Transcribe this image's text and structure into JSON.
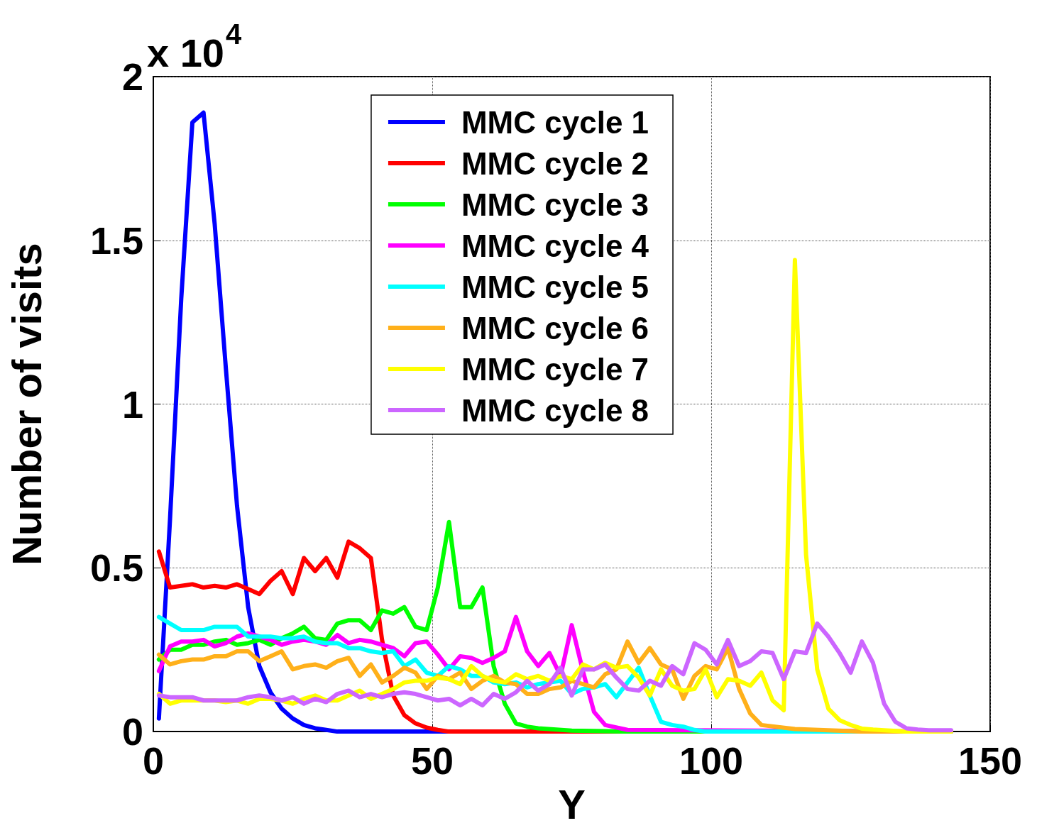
{
  "chart_data": {
    "type": "line",
    "xlabel": "Y",
    "ylabel": "Number of visits",
    "annotations": [
      "x 10$^{4}$"
    ],
    "xlim": [
      0,
      150
    ],
    "xticks": [
      0,
      50,
      100,
      150
    ],
    "ylim": [
      0,
      2
    ],
    "yticks": [
      0,
      0.5,
      1,
      1.5,
      2
    ],
    "grid": true,
    "legend": "top",
    "marker": "none",
    "line_style": "solid",
    "series": [
      {
        "name": "MMC cycle 1",
        "color": "#0000ff",
        "x": [
          1,
          3,
          5,
          7,
          9,
          11,
          13,
          15,
          17,
          19,
          21,
          23,
          25,
          27,
          29,
          31,
          33,
          143
        ],
        "values": [
          0.04,
          0.65,
          1.32,
          1.86,
          1.89,
          1.55,
          1.11,
          0.69,
          0.38,
          0.2,
          0.12,
          0.07,
          0.04,
          0.02,
          0.01,
          0.005,
          0,
          0
        ]
      },
      {
        "name": "MMC cycle 2",
        "color": "#ff0000",
        "x": [
          1,
          3,
          5,
          7,
          9,
          11,
          13,
          15,
          17,
          19,
          21,
          23,
          25,
          27,
          29,
          31,
          33,
          35,
          37,
          39,
          41,
          43,
          45,
          47,
          49,
          51,
          53,
          143
        ],
        "values": [
          0.55,
          0.44,
          0.445,
          0.45,
          0.44,
          0.445,
          0.44,
          0.45,
          0.435,
          0.42,
          0.46,
          0.49,
          0.42,
          0.53,
          0.49,
          0.53,
          0.47,
          0.58,
          0.56,
          0.53,
          0.28,
          0.11,
          0.05,
          0.025,
          0.012,
          0.005,
          0,
          0
        ]
      },
      {
        "name": "MMC cycle 3",
        "color": "#00ff00",
        "x": [
          1,
          3,
          5,
          7,
          9,
          11,
          13,
          15,
          17,
          19,
          21,
          23,
          25,
          27,
          29,
          31,
          33,
          35,
          37,
          39,
          41,
          43,
          45,
          47,
          49,
          51,
          53,
          55,
          57,
          59,
          61,
          63,
          65,
          67,
          69,
          75,
          85,
          143
        ],
        "values": [
          0.22,
          0.25,
          0.25,
          0.265,
          0.265,
          0.275,
          0.28,
          0.265,
          0.27,
          0.28,
          0.265,
          0.285,
          0.3,
          0.32,
          0.285,
          0.28,
          0.33,
          0.34,
          0.34,
          0.31,
          0.37,
          0.36,
          0.38,
          0.32,
          0.31,
          0.44,
          0.64,
          0.38,
          0.38,
          0.44,
          0.2,
          0.085,
          0.025,
          0.015,
          0.01,
          0.003,
          0,
          0
        ]
      },
      {
        "name": "MMC cycle 4",
        "color": "#ff00ff",
        "x": [
          1,
          3,
          5,
          7,
          9,
          11,
          13,
          15,
          17,
          19,
          21,
          23,
          25,
          27,
          29,
          31,
          33,
          35,
          37,
          39,
          41,
          43,
          45,
          47,
          49,
          51,
          53,
          55,
          57,
          59,
          61,
          63,
          65,
          67,
          69,
          71,
          73,
          75,
          77,
          79,
          81,
          85,
          143
        ],
        "values": [
          0.185,
          0.26,
          0.275,
          0.275,
          0.28,
          0.26,
          0.27,
          0.29,
          0.3,
          0.29,
          0.28,
          0.265,
          0.275,
          0.28,
          0.275,
          0.265,
          0.295,
          0.27,
          0.28,
          0.275,
          0.265,
          0.255,
          0.23,
          0.27,
          0.275,
          0.235,
          0.19,
          0.23,
          0.225,
          0.21,
          0.225,
          0.245,
          0.35,
          0.245,
          0.2,
          0.24,
          0.17,
          0.325,
          0.185,
          0.06,
          0.02,
          0.005,
          0
        ]
      },
      {
        "name": "MMC cycle 5",
        "color": "#00ffff",
        "x": [
          1,
          3,
          5,
          7,
          9,
          11,
          13,
          15,
          17,
          19,
          21,
          23,
          25,
          27,
          29,
          31,
          33,
          35,
          37,
          39,
          41,
          43,
          45,
          47,
          49,
          51,
          53,
          55,
          57,
          59,
          61,
          63,
          65,
          67,
          69,
          71,
          73,
          75,
          77,
          79,
          81,
          83,
          85,
          87,
          89,
          91,
          93,
          95,
          97,
          99,
          143
        ],
        "values": [
          0.35,
          0.33,
          0.31,
          0.31,
          0.31,
          0.32,
          0.32,
          0.32,
          0.29,
          0.29,
          0.29,
          0.285,
          0.285,
          0.29,
          0.275,
          0.27,
          0.27,
          0.255,
          0.255,
          0.245,
          0.24,
          0.245,
          0.2,
          0.22,
          0.18,
          0.17,
          0.2,
          0.19,
          0.17,
          0.17,
          0.15,
          0.145,
          0.15,
          0.135,
          0.145,
          0.15,
          0.155,
          0.115,
          0.13,
          0.135,
          0.145,
          0.105,
          0.15,
          0.195,
          0.11,
          0.03,
          0.02,
          0.015,
          0.005,
          0,
          0
        ]
      },
      {
        "name": "MMC cycle 6",
        "color": "#ffb01a",
        "x": [
          1,
          3,
          5,
          7,
          9,
          11,
          13,
          15,
          17,
          19,
          21,
          23,
          25,
          27,
          29,
          31,
          33,
          35,
          37,
          39,
          41,
          43,
          45,
          47,
          49,
          51,
          53,
          55,
          57,
          59,
          61,
          63,
          65,
          67,
          69,
          71,
          73,
          75,
          77,
          79,
          81,
          83,
          85,
          87,
          89,
          91,
          93,
          95,
          97,
          99,
          101,
          103,
          105,
          107,
          109,
          115,
          127,
          143
        ],
        "values": [
          0.235,
          0.205,
          0.215,
          0.22,
          0.22,
          0.23,
          0.23,
          0.245,
          0.245,
          0.215,
          0.23,
          0.245,
          0.19,
          0.2,
          0.205,
          0.195,
          0.215,
          0.225,
          0.17,
          0.205,
          0.15,
          0.17,
          0.195,
          0.18,
          0.13,
          0.17,
          0.16,
          0.18,
          0.13,
          0.155,
          0.17,
          0.15,
          0.145,
          0.115,
          0.115,
          0.13,
          0.135,
          0.155,
          0.145,
          0.135,
          0.175,
          0.19,
          0.275,
          0.21,
          0.255,
          0.205,
          0.19,
          0.1,
          0.17,
          0.2,
          0.19,
          0.255,
          0.13,
          0.055,
          0.02,
          0.008,
          0,
          0
        ]
      },
      {
        "name": "MMC cycle 7",
        "color": "#ffff00",
        "x": [
          1,
          3,
          5,
          7,
          9,
          11,
          13,
          15,
          17,
          19,
          21,
          23,
          25,
          27,
          29,
          31,
          33,
          35,
          37,
          39,
          41,
          43,
          45,
          47,
          49,
          51,
          53,
          55,
          57,
          59,
          61,
          63,
          65,
          67,
          69,
          71,
          73,
          75,
          77,
          79,
          81,
          83,
          85,
          87,
          89,
          91,
          93,
          95,
          97,
          99,
          101,
          103,
          105,
          107,
          109,
          111,
          113,
          115,
          117,
          119,
          121,
          123,
          125,
          127,
          129,
          131,
          135,
          143
        ],
        "values": [
          0.115,
          0.085,
          0.095,
          0.095,
          0.095,
          0.095,
          0.09,
          0.095,
          0.085,
          0.1,
          0.1,
          0.095,
          0.085,
          0.1,
          0.11,
          0.095,
          0.095,
          0.11,
          0.125,
          0.1,
          0.115,
          0.13,
          0.15,
          0.155,
          0.155,
          0.165,
          0.16,
          0.145,
          0.2,
          0.17,
          0.155,
          0.15,
          0.175,
          0.16,
          0.17,
          0.155,
          0.17,
          0.16,
          0.205,
          0.19,
          0.21,
          0.195,
          0.2,
          0.165,
          0.11,
          0.19,
          0.14,
          0.125,
          0.13,
          0.19,
          0.105,
          0.16,
          0.155,
          0.14,
          0.18,
          0.095,
          0.065,
          1.44,
          0.54,
          0.19,
          0.07,
          0.035,
          0.02,
          0.009,
          0.006,
          0.004,
          0,
          0
        ]
      },
      {
        "name": "MMC cycle 8",
        "color": "#cc66ff",
        "x": [
          1,
          3,
          5,
          7,
          9,
          11,
          13,
          15,
          17,
          19,
          21,
          23,
          25,
          27,
          29,
          31,
          33,
          35,
          37,
          39,
          41,
          43,
          45,
          47,
          49,
          51,
          53,
          55,
          57,
          59,
          61,
          63,
          65,
          67,
          69,
          71,
          73,
          75,
          77,
          79,
          81,
          83,
          85,
          87,
          89,
          91,
          93,
          95,
          97,
          99,
          101,
          103,
          105,
          107,
          109,
          111,
          113,
          115,
          117,
          119,
          121,
          123,
          125,
          127,
          129,
          131,
          133,
          135,
          137,
          139,
          141,
          143
        ],
        "values": [
          0.11,
          0.105,
          0.105,
          0.105,
          0.095,
          0.095,
          0.095,
          0.095,
          0.105,
          0.11,
          0.105,
          0.095,
          0.105,
          0.085,
          0.1,
          0.09,
          0.115,
          0.125,
          0.105,
          0.115,
          0.105,
          0.115,
          0.12,
          0.115,
          0.105,
          0.095,
          0.1,
          0.08,
          0.1,
          0.08,
          0.115,
          0.1,
          0.12,
          0.155,
          0.125,
          0.145,
          0.195,
          0.11,
          0.19,
          0.19,
          0.205,
          0.165,
          0.13,
          0.125,
          0.155,
          0.14,
          0.2,
          0.175,
          0.27,
          0.25,
          0.205,
          0.28,
          0.2,
          0.215,
          0.245,
          0.24,
          0.16,
          0.245,
          0.24,
          0.33,
          0.29,
          0.24,
          0.18,
          0.275,
          0.21,
          0.085,
          0.03,
          0.01,
          0.006,
          0.004,
          0.004,
          0.004
        ]
      }
    ]
  }
}
